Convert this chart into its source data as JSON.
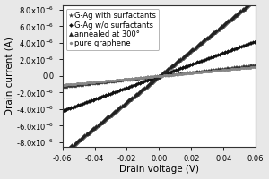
{
  "title": "",
  "xlabel": "Drain voltage (V)",
  "ylabel": "Drain current (A)",
  "xlim": [
    -0.06,
    0.06
  ],
  "ylim": [
    -8.5e-06,
    8.5e-06
  ],
  "xticks": [
    -0.06,
    -0.04,
    -0.02,
    0.0,
    0.02,
    0.04,
    0.06
  ],
  "yticks": [
    -8e-06,
    -6e-06,
    -4e-06,
    -2e-06,
    0.0,
    2e-06,
    4e-06,
    6e-06,
    8e-06
  ],
  "ytick_labels": [
    "-8.0x10⁻⁶",
    "-6.0x10⁻⁶",
    "-4.0x10⁻⁶",
    "-2.0x10⁻⁶",
    "0.0",
    "2.0x10⁻⁶",
    "4.0x10⁻⁶",
    "6.0x10⁻⁶",
    "8.0x10⁻⁶"
  ],
  "series": [
    {
      "label": "G-Ag with surfactants",
      "slope": 2.2e-05,
      "marker": "*",
      "ms": 3.0,
      "color": "#333333",
      "every": 3
    },
    {
      "label": "G-Ag w/o surfactants",
      "slope": 7e-05,
      "marker": "D",
      "ms": 2.0,
      "color": "#111111",
      "every": 3
    },
    {
      "label": "annealed at 300°",
      "slope": 0.000155,
      "marker": "^",
      "ms": 3.0,
      "color": "#222222",
      "every": 2
    },
    {
      "label": "pure graphene",
      "slope": 1.8e-05,
      "marker": "o",
      "ms": 2.0,
      "color": "#888888",
      "every": 3
    }
  ],
  "legend_fontsize": 6.0,
  "axis_label_fontsize": 7.5,
  "tick_fontsize": 6.0,
  "background_color": "#ffffff",
  "figure_bg": "#e8e8e8"
}
